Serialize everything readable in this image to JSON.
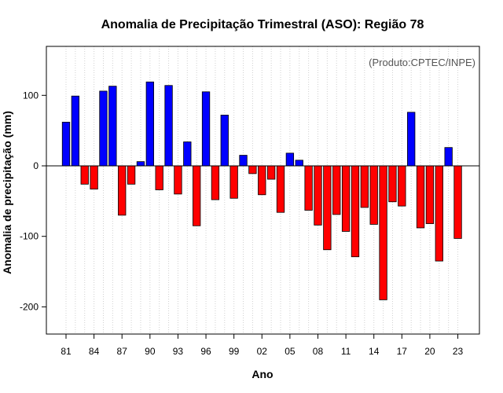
{
  "chart_data": {
    "type": "bar",
    "title": "Anomalia de Precipitação Trimestral (ASO): Região 78",
    "xlabel": "Ano",
    "ylabel": "Anomalia de precipitação (mm)",
    "credit": "(Produto:CPTEC/INPE)",
    "ylim": [
      -240,
      170
    ],
    "y_ticks": [
      -200,
      -100,
      0,
      100
    ],
    "x_tick_labels": [
      "81",
      "84",
      "87",
      "90",
      "93",
      "96",
      "99",
      "02",
      "05",
      "08",
      "11",
      "14",
      "17",
      "20",
      "23"
    ],
    "categories": [
      "1981",
      "1982",
      "1983",
      "1984",
      "1985",
      "1986",
      "1987",
      "1988",
      "1989",
      "1990",
      "1991",
      "1992",
      "1993",
      "1994",
      "1995",
      "1996",
      "1997",
      "1998",
      "1999",
      "2000",
      "2001",
      "2002",
      "2003",
      "2004",
      "2005",
      "2006",
      "2007",
      "2008",
      "2009",
      "2010",
      "2011",
      "2012",
      "2013",
      "2014",
      "2015",
      "2016",
      "2017",
      "2018",
      "2019",
      "2020",
      "2021",
      "2022",
      "2023"
    ],
    "values": [
      62,
      99,
      -26,
      -33,
      106,
      113,
      -70,
      -26,
      6,
      119,
      -34,
      114,
      -40,
      34,
      -85,
      105,
      -48,
      72,
      -46,
      15,
      -11,
      -41,
      -19,
      -66,
      18,
      8,
      -63,
      -84,
      -119,
      -69,
      -93,
      -129,
      -59,
      -83,
      -190,
      -51,
      -57,
      76,
      -88,
      -82,
      -135,
      26,
      -103
    ],
    "positive_color": "#0000ff",
    "negative_color": "#ff0000",
    "grid": "vertical dotted"
  }
}
